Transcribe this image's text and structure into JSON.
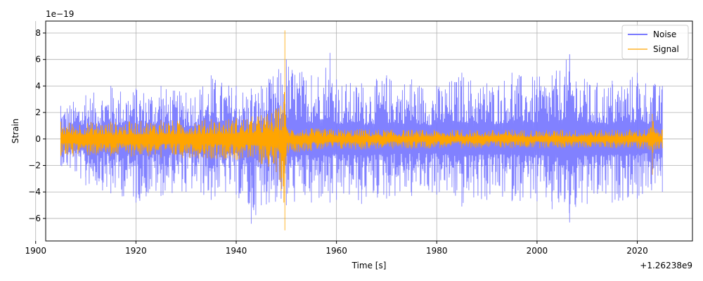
{
  "chart_data": {
    "type": "line",
    "title": "",
    "xlabel": "Time [s]",
    "ylabel": "Strain",
    "x_offset_label": "+1.26238e9",
    "y_scale_label": "1e−19",
    "xlim": [
      1902.0,
      2031.0
    ],
    "ylim": [
      -7.7,
      8.9
    ],
    "x_ticks": [
      1900,
      1920,
      1940,
      1960,
      1980,
      2000,
      2020
    ],
    "x_tick_labels": [
      "1900",
      "1920",
      "1940",
      "1960",
      "1980",
      "2000",
      "2020"
    ],
    "y_ticks": [
      -6,
      -4,
      -2,
      0,
      2,
      4,
      6,
      8
    ],
    "y_tick_labels": [
      "−6",
      "−4",
      "−2",
      "0",
      "2",
      "4",
      "6",
      "8"
    ],
    "grid": true,
    "legend_position": "top-right",
    "series": [
      {
        "name": "Noise",
        "color": "#7a7aff",
        "x": [
          1905.0,
          1910.0,
          1915.0,
          1920.0,
          1925.0,
          1930.0,
          1935.0,
          1940.0,
          1943.0,
          1945.0,
          1950.0,
          1955.0,
          1958.7,
          1960.0,
          1965.0,
          1970.0,
          1975.0,
          1980.0,
          1985.0,
          1990.0,
          1995.0,
          2000.0,
          2003.0,
          2006.5,
          2010.0,
          2015.0,
          2020.0,
          2025.0
        ],
        "upper": [
          2.5,
          3.3,
          4.0,
          3.8,
          4.0,
          3.5,
          4.8,
          4.0,
          3.8,
          4.0,
          6.0,
          4.8,
          6.5,
          4.5,
          4.2,
          4.8,
          4.5,
          4.0,
          5.0,
          4.2,
          5.0,
          4.7,
          4.8,
          6.4,
          4.3,
          4.4,
          5.0,
          4.0
        ],
        "lower": [
          -2.0,
          -3.5,
          -4.1,
          -4.8,
          -4.3,
          -4.0,
          -4.6,
          -4.2,
          -6.4,
          -5.0,
          -5.0,
          -4.8,
          -4.8,
          -4.6,
          -4.9,
          -4.5,
          -4.3,
          -4.2,
          -5.1,
          -4.6,
          -4.7,
          -4.7,
          -5.3,
          -6.3,
          -4.9,
          -4.8,
          -4.5,
          -4.0
        ]
      },
      {
        "name": "Signal",
        "color": "#ffa500",
        "x": [
          1905.0,
          1915.0,
          1925.0,
          1935.0,
          1940.0,
          1945.0,
          1948.0,
          1949.5,
          1949.7,
          1950.0,
          1955.0,
          1965.0,
          1975.0,
          1985.0,
          1995.0,
          2005.0,
          2015.0,
          2022.5,
          2023.0,
          2023.5,
          2025.0
        ],
        "upper": [
          1.3,
          1.3,
          1.4,
          1.5,
          1.6,
          1.8,
          2.3,
          2.8,
          8.2,
          0.9,
          0.8,
          0.75,
          0.7,
          0.7,
          0.7,
          0.7,
          0.7,
          0.8,
          1.9,
          0.8,
          0.7
        ],
        "lower": [
          -1.3,
          -1.3,
          -1.4,
          -1.5,
          -1.6,
          -1.9,
          -2.5,
          -4.8,
          -6.9,
          -1.1,
          -0.9,
          -0.8,
          -0.75,
          -0.7,
          -0.7,
          -0.7,
          -0.7,
          -0.8,
          -2.7,
          -0.8,
          -0.7
        ]
      }
    ]
  }
}
